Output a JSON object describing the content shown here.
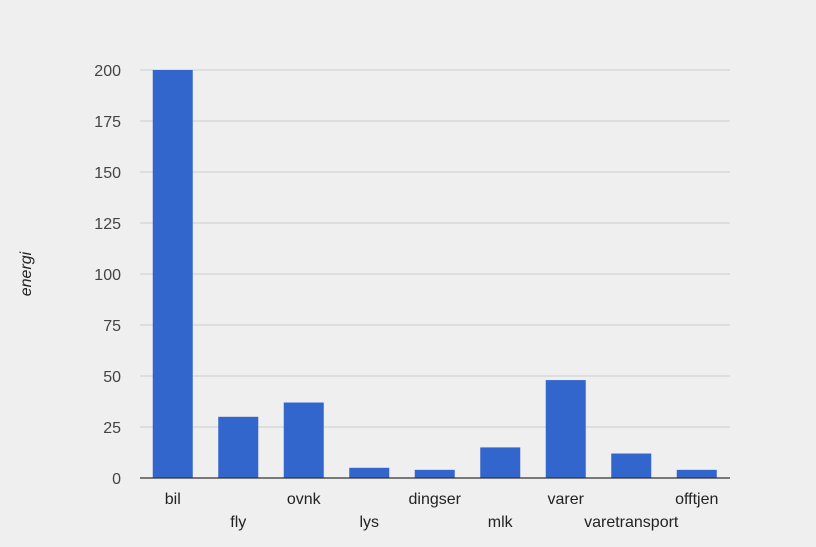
{
  "chart_data": {
    "type": "bar",
    "title": "",
    "xlabel": "",
    "ylabel": "energi",
    "categories": [
      "bil",
      "fly",
      "ovnk",
      "lys",
      "dingser",
      "mlk",
      "varer",
      "varetransport",
      "offtjen"
    ],
    "values": [
      200,
      30,
      37,
      5,
      4,
      15,
      48,
      12,
      4
    ],
    "ylim": [
      0,
      200
    ],
    "yticks": [
      0,
      25,
      50,
      75,
      100,
      125,
      150,
      175,
      200
    ],
    "grid": true,
    "legend": "none",
    "bar_color": "#3366cc",
    "grid_color": "#cccccc",
    "axis_color": "#333333"
  }
}
